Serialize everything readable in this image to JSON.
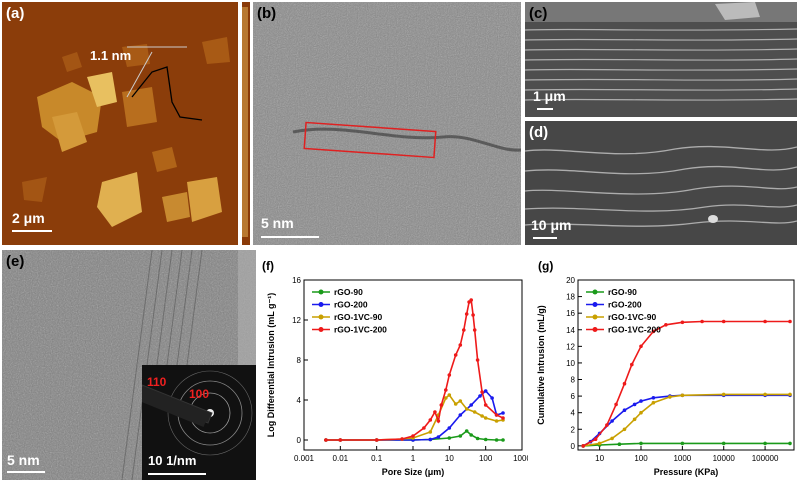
{
  "panels": {
    "a": {
      "label": "(a)",
      "scale": "2 μm",
      "annotation": "1.1 nm"
    },
    "b": {
      "label": "(b)",
      "scale": "5 nm"
    },
    "c": {
      "label": "(c)",
      "scale": "1 μm"
    },
    "d": {
      "label": "(d)",
      "scale": "10 μm"
    },
    "e": {
      "label": "(e)",
      "scale": "5 nm",
      "inset_scale": "10 1/nm",
      "spot1": "110",
      "spot2": "100"
    }
  },
  "colors": {
    "rGO-90": "#1a9a1a",
    "rGO-200": "#1a1aee",
    "rGO-1VC-90": "#c9a000",
    "rGO-1VC-200": "#ee1a1a"
  },
  "chart_data": [
    {
      "panel": "(f)",
      "type": "line",
      "xlabel": "Pore Size  (μm)",
      "ylabel": "Log Differential Intrusion (mL g⁻¹)",
      "xscale": "log",
      "xlim": [
        0.001,
        1000
      ],
      "ylim": [
        -1,
        16
      ],
      "xticks": [
        "0.001",
        "0.01",
        "0.1",
        "1",
        "10",
        "100",
        "1000"
      ],
      "yticks": [
        "0",
        "4",
        "8",
        "12",
        "16"
      ],
      "legend_position": "top-left",
      "series": [
        {
          "name": "rGO-90",
          "color": "#1a9a1a",
          "x": [
            0.004,
            0.01,
            0.1,
            1,
            3,
            10,
            20,
            30,
            40,
            60,
            100,
            200,
            300
          ],
          "y": [
            0,
            0,
            0,
            0,
            0.05,
            0.2,
            0.4,
            0.9,
            0.5,
            0.15,
            0.05,
            0,
            0
          ]
        },
        {
          "name": "rGO-200",
          "color": "#1a1aee",
          "x": [
            0.004,
            0.01,
            0.1,
            1,
            3,
            5,
            10,
            20,
            40,
            70,
            100,
            150,
            200,
            300
          ],
          "y": [
            0,
            0,
            0,
            0,
            0.05,
            0.3,
            1.2,
            2.5,
            3.5,
            4.4,
            4.9,
            4.2,
            2.5,
            2.7
          ]
        },
        {
          "name": "rGO-1VC-90",
          "color": "#c9a000",
          "x": [
            0.004,
            0.01,
            0.1,
            0.5,
            1,
            3,
            5,
            8,
            10,
            15,
            20,
            30,
            50,
            80,
            100,
            200,
            300
          ],
          "y": [
            0,
            0,
            0,
            0.1,
            0.2,
            0.8,
            2.5,
            4.2,
            4.5,
            3.6,
            3.9,
            3.1,
            2.8,
            2.4,
            2.2,
            1.9,
            2.0
          ]
        },
        {
          "name": "rGO-1VC-200",
          "color": "#ee1a1a",
          "x": [
            0.004,
            0.01,
            0.1,
            0.5,
            1,
            2,
            3,
            4,
            5,
            6,
            8,
            10,
            15,
            20,
            25,
            30,
            35,
            40,
            45,
            50,
            60,
            80,
            100,
            200,
            300
          ],
          "y": [
            0,
            0,
            0,
            0.1,
            0.4,
            1.2,
            2.0,
            2.8,
            1.9,
            3.5,
            5.0,
            6.5,
            8.5,
            9.5,
            11.0,
            12.6,
            13.8,
            14.0,
            12.5,
            11.0,
            8.0,
            4.8,
            3.5,
            2.5,
            2.2
          ]
        }
      ]
    },
    {
      "panel": "(g)",
      "type": "line",
      "xlabel": "Pressure (KPa)",
      "ylabel": "Cumulative Intrusion (mL/g)",
      "xscale": "log",
      "xlim": [
        3,
        500000
      ],
      "ylim": [
        -0.5,
        20
      ],
      "xticks": [
        "10",
        "100",
        "1000",
        "10000",
        "100000"
      ],
      "yticks": [
        "0",
        "2",
        "4",
        "6",
        "8",
        "10",
        "12",
        "14",
        "16",
        "18",
        "20"
      ],
      "legend_position": "top-left",
      "series": [
        {
          "name": "rGO-90",
          "color": "#1a9a1a",
          "x": [
            4,
            10,
            30,
            100,
            1000,
            10000,
            100000,
            400000
          ],
          "y": [
            0,
            0.1,
            0.2,
            0.3,
            0.3,
            0.3,
            0.3,
            0.3
          ]
        },
        {
          "name": "rGO-200",
          "color": "#1a1aee",
          "x": [
            4,
            6,
            10,
            20,
            40,
            70,
            100,
            200,
            500,
            1000,
            10000,
            100000,
            400000
          ],
          "y": [
            0,
            0.5,
            1.5,
            3.0,
            4.3,
            5.0,
            5.4,
            5.8,
            6.0,
            6.1,
            6.1,
            6.1,
            6.1
          ]
        },
        {
          "name": "rGO-1VC-90",
          "color": "#c9a000",
          "x": [
            4,
            10,
            20,
            40,
            70,
            100,
            200,
            500,
            1000,
            10000,
            100000,
            400000
          ],
          "y": [
            0,
            0.3,
            0.9,
            2.0,
            3.2,
            4.0,
            5.2,
            5.9,
            6.1,
            6.2,
            6.2,
            6.2
          ]
        },
        {
          "name": "rGO-1VC-200",
          "color": "#ee1a1a",
          "x": [
            4,
            8,
            15,
            25,
            40,
            60,
            100,
            200,
            400,
            1000,
            3000,
            10000,
            100000,
            400000
          ],
          "y": [
            0,
            0.8,
            2.5,
            5.0,
            7.5,
            9.8,
            12.0,
            13.8,
            14.6,
            14.9,
            15.0,
            15.0,
            15.0,
            15.0
          ]
        }
      ]
    }
  ]
}
